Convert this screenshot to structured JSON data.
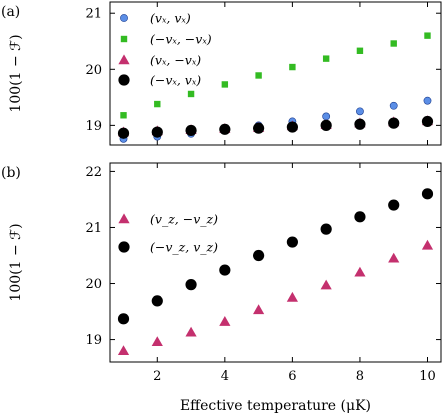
{
  "chart_data": [
    {
      "type": "scatter",
      "panel_label": "(a)",
      "ylabel": "100(1 − ℱ)",
      "xlabel": "",
      "xlim": [
        0.6,
        10.4
      ],
      "ylim": [
        18.65,
        21.2
      ],
      "xticks": [
        2,
        4,
        6,
        8,
        10
      ],
      "yticks": [
        19,
        20,
        21
      ],
      "show_x_tick_labels": false,
      "legend_position": "top-left",
      "grid": false,
      "series": [
        {
          "name": "(vₓ, vₓ)",
          "marker": "circle-small",
          "color": "#5b8ee6",
          "x": [
            1,
            2,
            3,
            4,
            5,
            6,
            7,
            8,
            9,
            10
          ],
          "y": [
            18.76,
            18.8,
            18.85,
            18.92,
            19.0,
            19.07,
            19.16,
            19.25,
            19.35,
            19.44
          ]
        },
        {
          "name": "(−vₓ, −vₓ)",
          "marker": "square",
          "color": "#33bb22",
          "x": [
            1,
            2,
            3,
            4,
            5,
            6,
            7,
            8,
            9,
            10
          ],
          "y": [
            19.18,
            19.38,
            19.56,
            19.73,
            19.89,
            20.04,
            20.19,
            20.33,
            20.46,
            20.6
          ]
        },
        {
          "name": "(vₓ, −vₓ)",
          "marker": "triangle",
          "color": "#c4306e",
          "x": [
            1,
            2,
            3,
            4,
            5,
            6,
            7,
            8,
            9,
            10
          ],
          "y": [
            18.88,
            18.9,
            18.92,
            18.94,
            18.96,
            18.99,
            19.01,
            19.04,
            19.06,
            19.08
          ]
        },
        {
          "name": "(−vₓ, vₓ)",
          "marker": "circle",
          "color": "#000000",
          "x": [
            1,
            2,
            3,
            4,
            5,
            6,
            7,
            8,
            9,
            10
          ],
          "y": [
            18.86,
            18.88,
            18.91,
            18.93,
            18.95,
            18.97,
            19.0,
            19.02,
            19.04,
            19.07
          ]
        }
      ]
    },
    {
      "type": "scatter",
      "panel_label": "(b)",
      "ylabel": "100(1 − ℱ)",
      "xlabel": "Effective temperature  (μK)",
      "xlim": [
        0.6,
        10.4
      ],
      "ylim": [
        18.6,
        22.15
      ],
      "xticks": [
        2,
        4,
        6,
        8,
        10
      ],
      "yticks": [
        19,
        20,
        21,
        22
      ],
      "show_x_tick_labels": true,
      "legend_position": "top-left",
      "grid": false,
      "series": [
        {
          "name": "(v_z, −v_z)",
          "marker": "triangle",
          "color": "#c4306e",
          "x": [
            1,
            2,
            3,
            4,
            5,
            6,
            7,
            8,
            9,
            10
          ],
          "y": [
            18.8,
            18.96,
            19.13,
            19.32,
            19.53,
            19.75,
            19.97,
            20.2,
            20.45,
            20.68
          ]
        },
        {
          "name": "(−v_z, v_z)",
          "marker": "circle",
          "color": "#000000",
          "x": [
            1,
            2,
            3,
            4,
            5,
            6,
            7,
            8,
            9,
            10
          ],
          "y": [
            19.37,
            19.69,
            19.98,
            20.24,
            20.5,
            20.74,
            20.97,
            21.19,
            21.4,
            21.6
          ]
        }
      ]
    }
  ]
}
